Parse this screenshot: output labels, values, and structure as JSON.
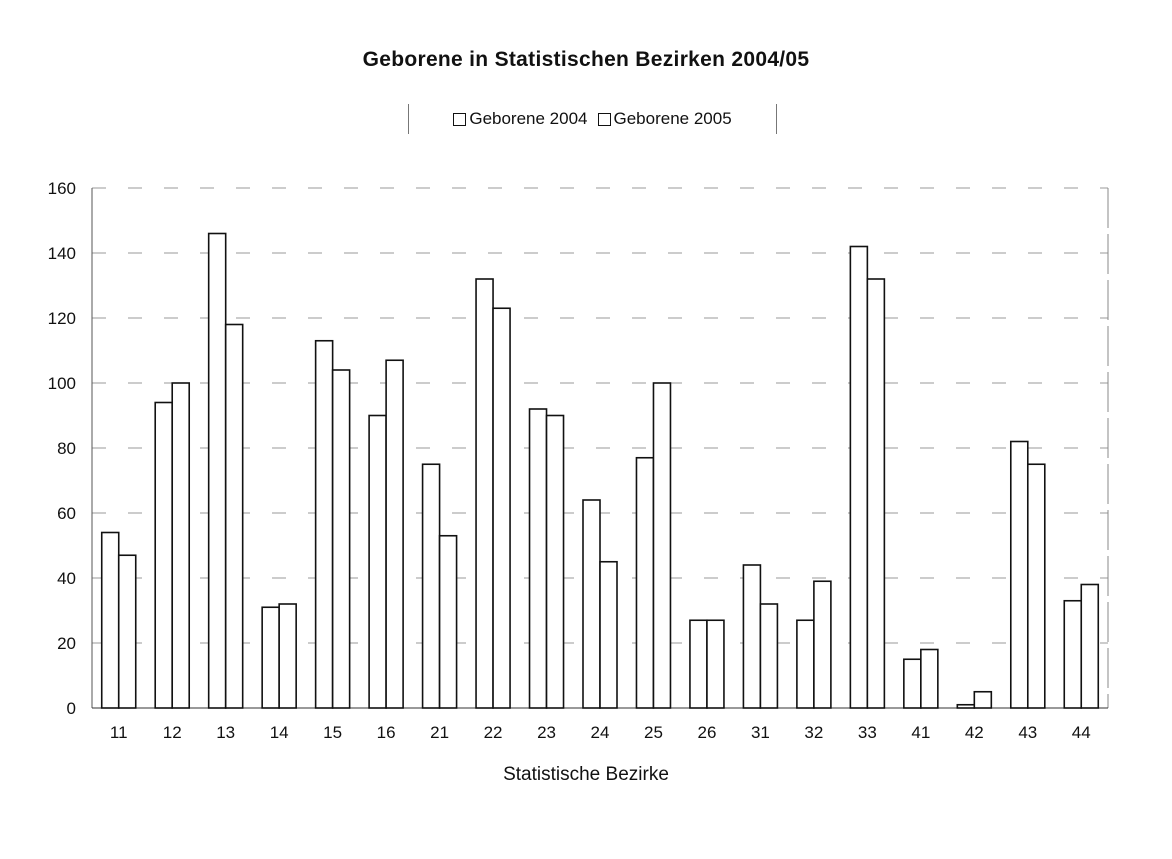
{
  "chart_data": {
    "type": "bar",
    "title": "Geborene in Statistischen Bezirken 2004/05",
    "xlabel": "Statistische Bezirke",
    "ylabel": "",
    "categories": [
      "11",
      "12",
      "13",
      "14",
      "15",
      "16",
      "21",
      "22",
      "23",
      "24",
      "25",
      "26",
      "31",
      "32",
      "33",
      "41",
      "42",
      "43",
      "44"
    ],
    "series": [
      {
        "name": "Geborene 2004",
        "values": [
          54,
          94,
          146,
          31,
          113,
          90,
          75,
          132,
          92,
          64,
          77,
          27,
          44,
          27,
          142,
          15,
          1,
          82,
          33
        ]
      },
      {
        "name": "Geborene 2005",
        "values": [
          47,
          100,
          118,
          32,
          104,
          107,
          53,
          123,
          90,
          45,
          100,
          27,
          32,
          39,
          132,
          18,
          5,
          75,
          38
        ]
      }
    ],
    "ylim": [
      0,
      160
    ],
    "yticks": [
      0,
      20,
      40,
      60,
      80,
      100,
      120,
      140,
      160
    ],
    "grid": true,
    "legend_position": "top-center"
  }
}
